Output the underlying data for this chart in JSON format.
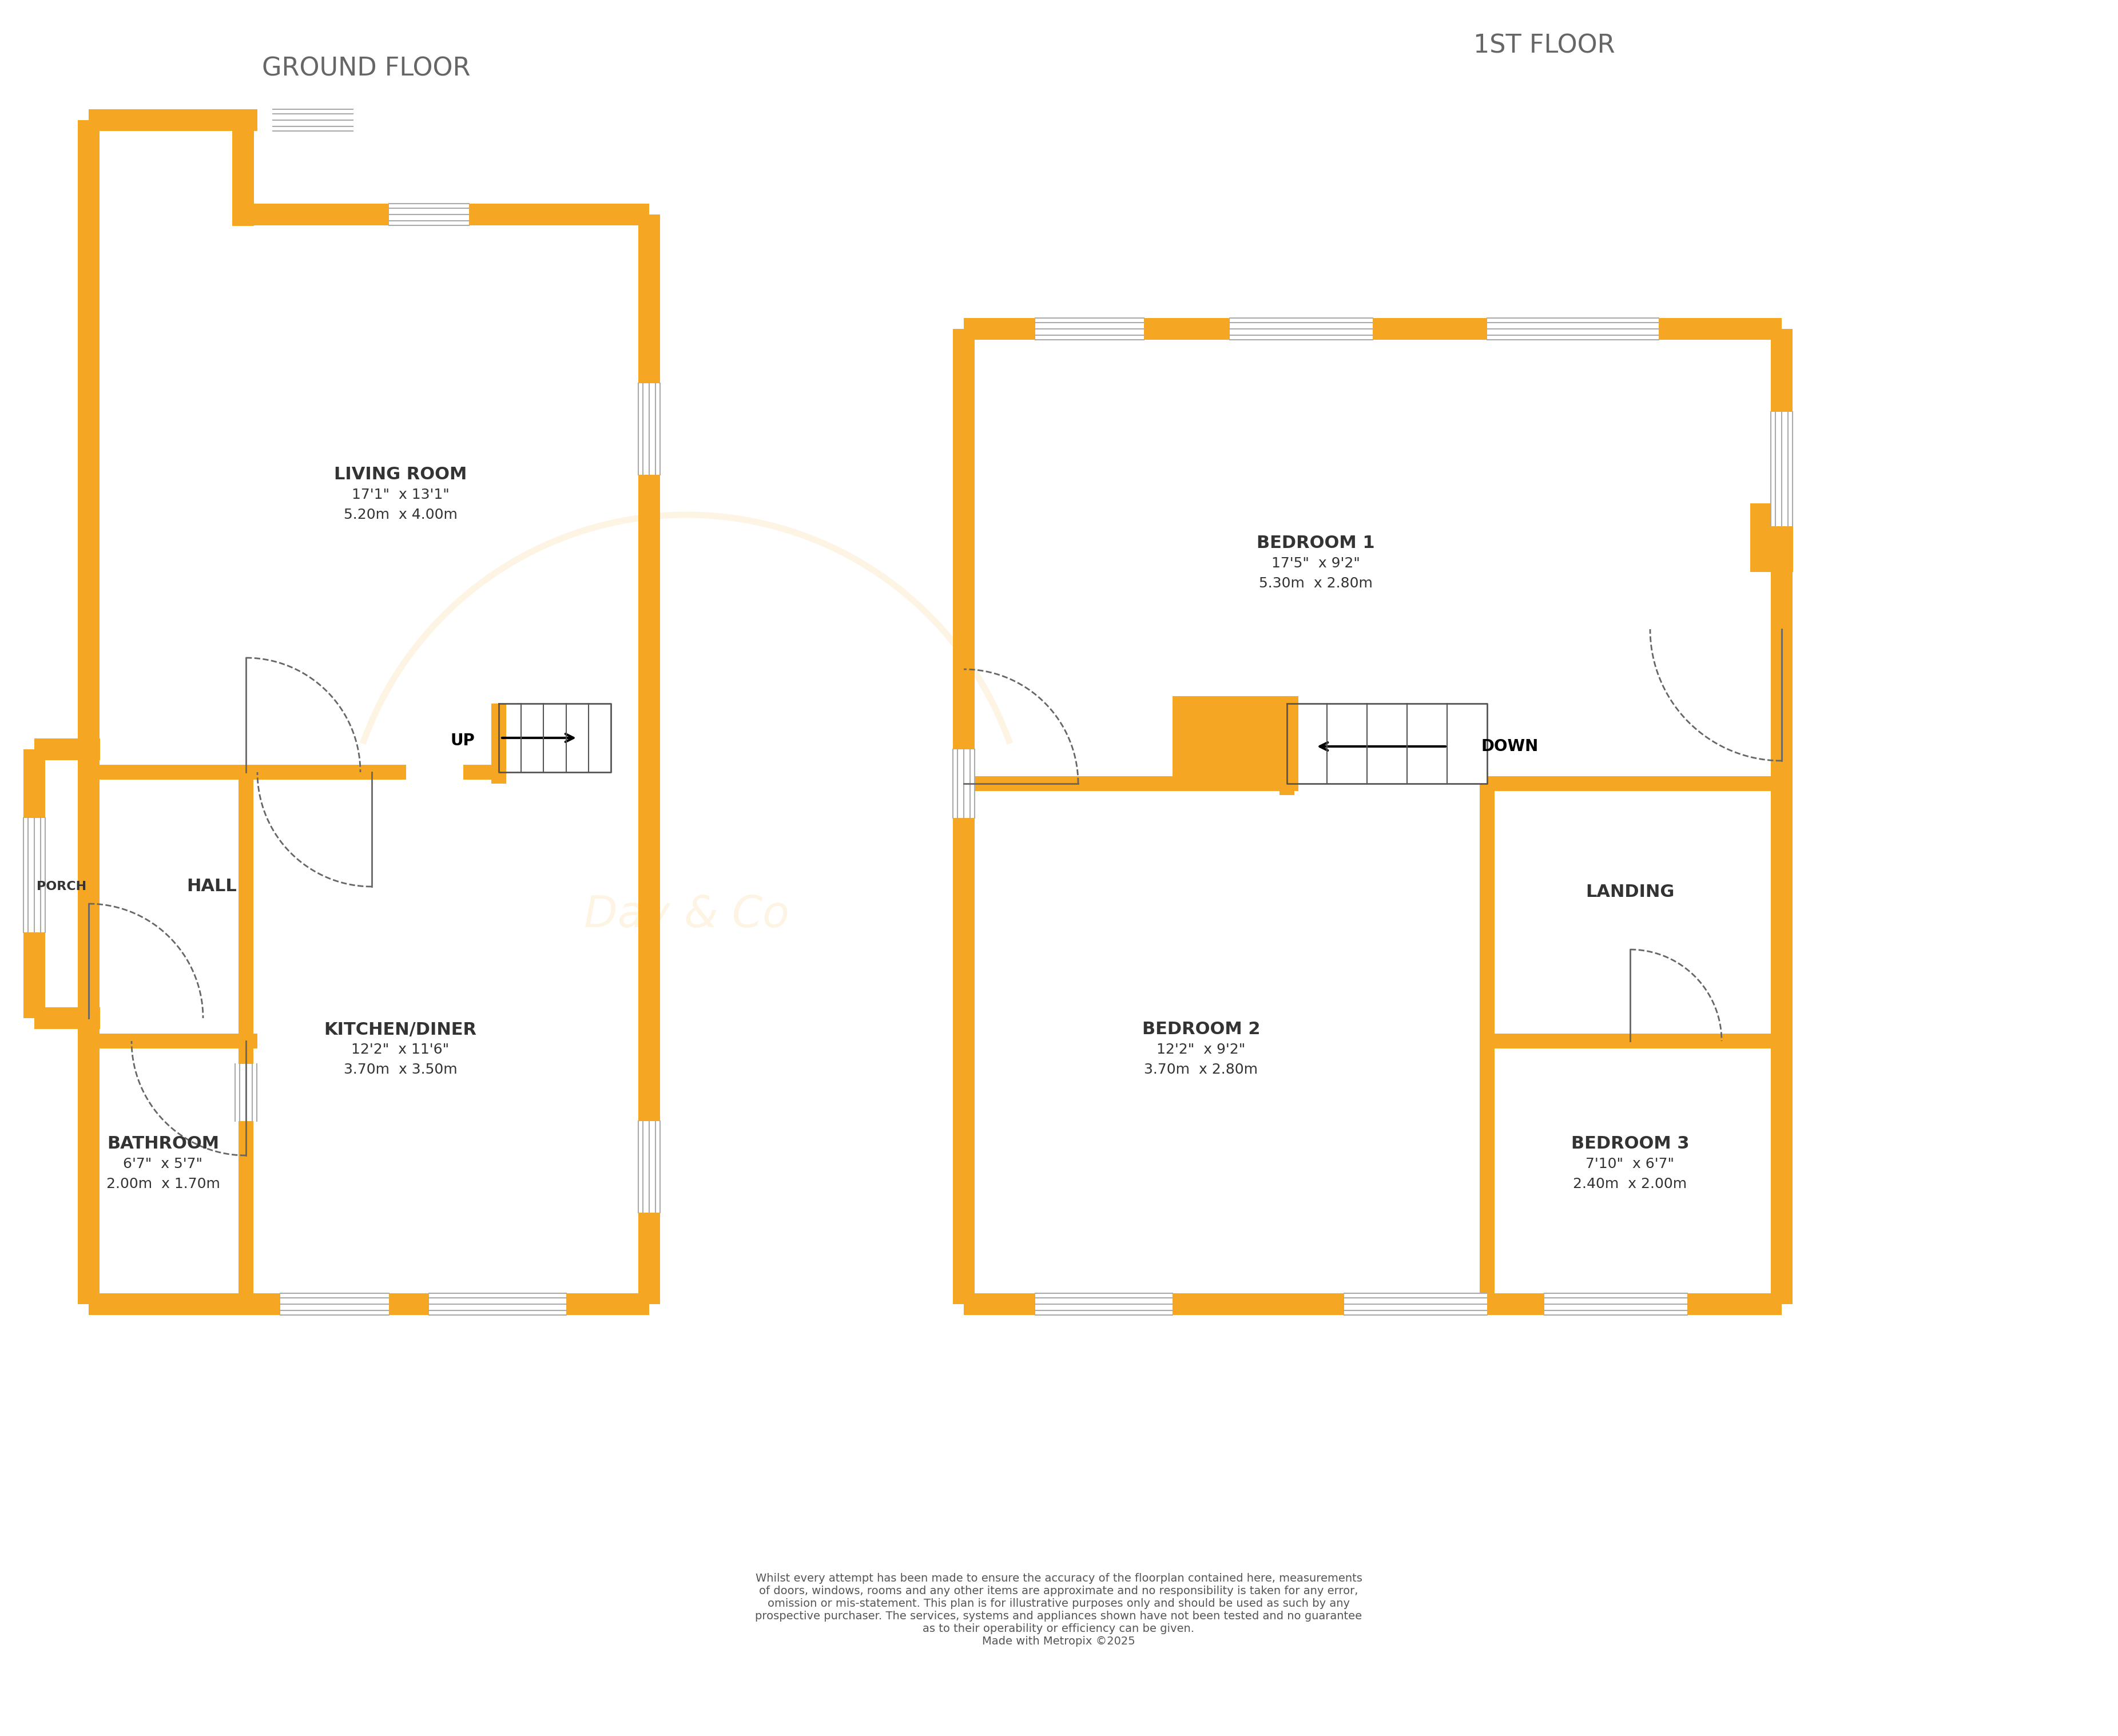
{
  "bg_color": "#ffffff",
  "orange": "#F5A623",
  "gray_line": "#999999",
  "dark": "#444444",
  "fig_width": 37.03,
  "fig_height": 30.35,
  "ground_floor_label": "GROUND FLOOR",
  "first_floor_label": "1ST FLOOR",
  "rooms": {
    "living_room": {
      "label": "LIVING ROOM",
      "dim1": "17'1\"  x 13'1\"",
      "dim2": "5.20m  x 4.00m"
    },
    "hall": {
      "label": "HALL"
    },
    "porch": {
      "label": "PORCH"
    },
    "kitchen": {
      "label": "KITCHEN/DINER",
      "dim1": "12'2\"  x 11'6\"",
      "dim2": "3.70m  x 3.50m"
    },
    "bathroom": {
      "label": "BATHROOM",
      "dim1": "6'7\"  x 5'7\"",
      "dim2": "2.00m  x 1.70m"
    },
    "bedroom1": {
      "label": "BEDROOM 1",
      "dim1": "17'5\"  x 9'2\"",
      "dim2": "5.30m  x 2.80m"
    },
    "bedroom2": {
      "label": "BEDROOM 2",
      "dim1": "12'2\"  x 9'2\"",
      "dim2": "3.70m  x 2.80m"
    },
    "bedroom3": {
      "label": "BEDROOM 3",
      "dim1": "7'10\"  x 6'7\"",
      "dim2": "2.40m  x 2.00m"
    },
    "landing": {
      "label": "LANDING"
    }
  },
  "footer": "Whilst every attempt has been made to ensure the accuracy of the floorplan contained here, measurements\nof doors, windows, rooms and any other items are approximate and no responsibility is taken for any error,\nomission or mis-statement. This plan is for illustrative purposes only and should be used as such by any\nprospective purchaser. The services, systems and appliances shown have not been tested and no guarantee\nas to their operability or efficiency can be given.\nMade with Metropix ©2025"
}
